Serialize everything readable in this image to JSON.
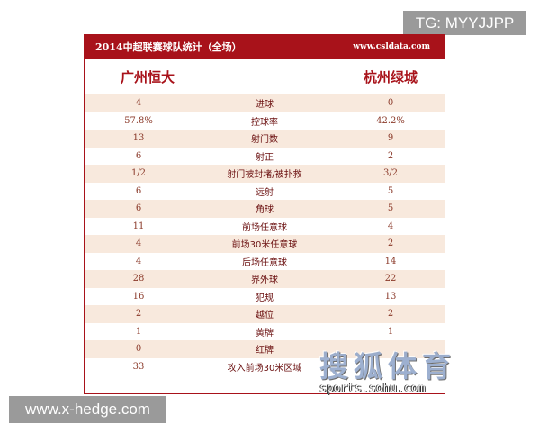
{
  "watermarks": {
    "top": "TG: MYYJJPP",
    "bottom": "www.x-hedge.com",
    "sohu_cn": "搜狐体育",
    "sohu_en": "sports.sohu.com"
  },
  "header": {
    "title": "2014中超联赛球队统计（全场）",
    "site": "www.csldata.com"
  },
  "teams": {
    "home": "广州恒大",
    "away": "杭州绿城"
  },
  "colors": {
    "accent": "#a8121a",
    "row_alt": "#f8e9dd"
  },
  "rows": [
    {
      "home": "4",
      "label": "进球",
      "away": "0"
    },
    {
      "home": "57.8%",
      "label": "控球率",
      "away": "42.2%"
    },
    {
      "home": "13",
      "label": "射门数",
      "away": "9"
    },
    {
      "home": "6",
      "label": "射正",
      "away": "2"
    },
    {
      "home": "1/2",
      "label": "射门被封堵/被扑救",
      "away": "3/2"
    },
    {
      "home": "6",
      "label": "远射",
      "away": "5"
    },
    {
      "home": "6",
      "label": "角球",
      "away": "5"
    },
    {
      "home": "11",
      "label": "前场任意球",
      "away": "4"
    },
    {
      "home": "4",
      "label": "前场30米任意球",
      "away": "2"
    },
    {
      "home": "4",
      "label": "后场任意球",
      "away": "14"
    },
    {
      "home": "28",
      "label": "界外球",
      "away": "22"
    },
    {
      "home": "16",
      "label": "犯规",
      "away": "13"
    },
    {
      "home": "2",
      "label": "越位",
      "away": "2"
    },
    {
      "home": "1",
      "label": "黄牌",
      "away": "1"
    },
    {
      "home": "0",
      "label": "红牌",
      "away": ""
    },
    {
      "home": "33",
      "label": "攻入前场30米区域",
      "away": ""
    }
  ]
}
